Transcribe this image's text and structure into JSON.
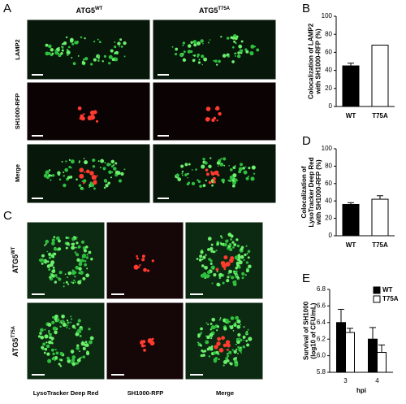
{
  "panels": {
    "A": {
      "letter": "A",
      "columns": [
        {
          "base": "ATG5",
          "sup": "WT"
        },
        {
          "base": "ATG5",
          "sup": "T75A"
        }
      ],
      "rows": [
        "LAMP2",
        "SH1000-RFP",
        "Merge"
      ]
    },
    "C": {
      "letter": "C",
      "columns": [
        "LysoTracker Deep Red",
        "SH1000-RFP",
        "Merge"
      ],
      "rows": [
        {
          "base": "ATG5",
          "sup": "WT"
        },
        {
          "base": "ATG5",
          "sup": "T75A"
        }
      ]
    },
    "B": {
      "letter": "B"
    },
    "D": {
      "letter": "D"
    },
    "E": {
      "letter": "E"
    }
  },
  "chart_data": [
    {
      "type": "bar",
      "ylabel": [
        "Colocalization of LAMP2",
        "with SH1000-RFP (%)"
      ],
      "categories": [
        "WT",
        "T75A"
      ],
      "values": [
        45,
        68
      ],
      "errors": [
        3,
        null
      ],
      "colors": [
        "#000000",
        "#ffffff"
      ],
      "ylim": [
        0,
        100
      ],
      "yticks": [
        0,
        20,
        40,
        60,
        80,
        100
      ]
    },
    {
      "type": "bar",
      "ylabel": [
        "Colocalization of",
        "LysoTracker Deep Red",
        "with SH1000-RFP (%)"
      ],
      "categories": [
        "WT",
        "T75A"
      ],
      "values": [
        36,
        42
      ],
      "errors": [
        2,
        4
      ],
      "colors": [
        "#000000",
        "#ffffff"
      ],
      "ylim": [
        0,
        100
      ],
      "yticks": [
        0,
        20,
        40,
        60,
        80,
        100
      ]
    },
    {
      "type": "grouped-bar",
      "ylabel": [
        "Survival of SH1000",
        "(log10 of CFU/mL)"
      ],
      "xlabel": "hpi",
      "categories": [
        "3",
        "4"
      ],
      "series": [
        {
          "name": "WT",
          "color": "#000000",
          "values": [
            6.4,
            6.2
          ],
          "errors": [
            0.16,
            0.14
          ]
        },
        {
          "name": "T75A",
          "color": "#ffffff",
          "values": [
            6.28,
            6.04
          ],
          "errors": [
            0.05,
            0.09
          ]
        }
      ],
      "ylim": [
        5.8,
        6.8
      ],
      "yticks": [
        5.8,
        {
          "value": 6,
          "label": "6.0"
        },
        6.2,
        6.4,
        6.6,
        6.8
      ],
      "legend": "upper right"
    }
  ]
}
